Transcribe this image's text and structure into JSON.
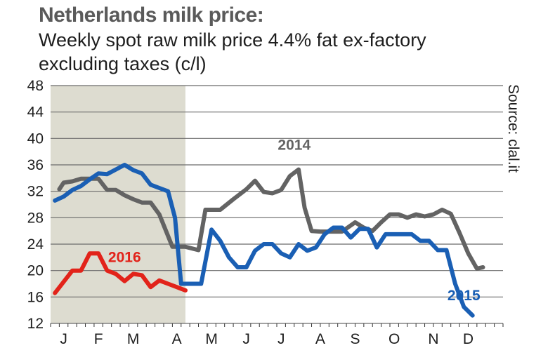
{
  "chart_data": {
    "type": "line",
    "title": "Netherlands milk price:",
    "subtitle": "Weekly spot raw milk price 4.4% fat ex-factory excluding taxes (c/l)",
    "source": "Source: clal.it",
    "xlabel": "",
    "ylabel": "",
    "ylim": [
      12,
      48
    ],
    "yticks": [
      12,
      16,
      20,
      24,
      28,
      32,
      36,
      40,
      44,
      48
    ],
    "x_domain": [
      0,
      52
    ],
    "month_ticks": [
      {
        "label": "J",
        "week": 1.5
      },
      {
        "label": "F",
        "week": 5.5
      },
      {
        "label": "M",
        "week": 9.5
      },
      {
        "label": "A",
        "week": 14.5
      },
      {
        "label": "M",
        "week": 18.5
      },
      {
        "label": "J",
        "week": 22.5
      },
      {
        "label": "J",
        "week": 26.5
      },
      {
        "label": "A",
        "week": 31
      },
      {
        "label": "S",
        "week": 35
      },
      {
        "label": "O",
        "week": 39.5
      },
      {
        "label": "N",
        "week": 44
      },
      {
        "label": "D",
        "week": 48
      }
    ],
    "grid": true,
    "shaded_region": {
      "from_week": 0,
      "to_week": 15.5,
      "color": "#dddcd0"
    },
    "series": [
      {
        "name": "2014",
        "color": "#636363",
        "label_at": {
          "week": 28,
          "value": 38.3
        },
        "points": [
          [
            1,
            32.3
          ],
          [
            1.5,
            33.3
          ],
          [
            2.5,
            33.5
          ],
          [
            3.5,
            33.9
          ],
          [
            5.5,
            33.9
          ],
          [
            6.5,
            32.2
          ],
          [
            7.5,
            32.2
          ],
          [
            8.5,
            31.4
          ],
          [
            9.5,
            30.8
          ],
          [
            10.5,
            30.3
          ],
          [
            11.5,
            30.3
          ],
          [
            12.5,
            28.5
          ],
          [
            14,
            23.6
          ],
          [
            15.5,
            23.6
          ],
          [
            17,
            23.1
          ],
          [
            17.8,
            29.2
          ],
          [
            19.5,
            29.2
          ],
          [
            21,
            30.8
          ],
          [
            22.5,
            32.3
          ],
          [
            23.5,
            33.6
          ],
          [
            24.5,
            31.9
          ],
          [
            25.5,
            31.7
          ],
          [
            26.5,
            32.2
          ],
          [
            27.5,
            34.3
          ],
          [
            28.5,
            35.3
          ],
          [
            29.2,
            29.5
          ],
          [
            30,
            26
          ],
          [
            31,
            25.9
          ],
          [
            33.5,
            25.9
          ],
          [
            35,
            27.3
          ],
          [
            36,
            26.5
          ],
          [
            37,
            26
          ],
          [
            38,
            27.3
          ],
          [
            39,
            28.5
          ],
          [
            40,
            28.5
          ],
          [
            41,
            28
          ],
          [
            42,
            28.5
          ],
          [
            43,
            28.2
          ],
          [
            44,
            28.5
          ],
          [
            45,
            29.2
          ],
          [
            46,
            28.6
          ],
          [
            47,
            25.7
          ],
          [
            48,
            22.6
          ],
          [
            49,
            20.3
          ],
          [
            49.7,
            20.5
          ]
        ]
      },
      {
        "name": "2015",
        "color": "#1a5fb4",
        "label_at": {
          "week": 47.5,
          "value": 15.5
        },
        "points": [
          [
            0.5,
            30.6
          ],
          [
            1.5,
            31.2
          ],
          [
            2.5,
            32.2
          ],
          [
            3.5,
            32.8
          ],
          [
            4.5,
            33.8
          ],
          [
            5.5,
            34.7
          ],
          [
            6.5,
            34.6
          ],
          [
            7.5,
            35.3
          ],
          [
            8.5,
            36
          ],
          [
            9.5,
            35.2
          ],
          [
            10.5,
            34.7
          ],
          [
            11.5,
            33
          ],
          [
            12.5,
            32.5
          ],
          [
            13.5,
            32
          ],
          [
            14.3,
            28
          ],
          [
            15,
            18
          ],
          [
            16.5,
            18
          ],
          [
            17.3,
            18
          ],
          [
            18.5,
            26.2
          ],
          [
            19.5,
            24.5
          ],
          [
            20.5,
            22
          ],
          [
            21.5,
            20.5
          ],
          [
            22.5,
            20.5
          ],
          [
            23.5,
            23
          ],
          [
            24.5,
            24
          ],
          [
            25.5,
            24
          ],
          [
            26.5,
            22.6
          ],
          [
            27.5,
            22
          ],
          [
            28.5,
            24
          ],
          [
            29.5,
            23
          ],
          [
            30.5,
            23.5
          ],
          [
            31.5,
            25.5
          ],
          [
            32.5,
            26.5
          ],
          [
            33.5,
            26.5
          ],
          [
            34.5,
            25
          ],
          [
            35.5,
            26.3
          ],
          [
            36.5,
            26.3
          ],
          [
            37.5,
            23.5
          ],
          [
            38.5,
            25.5
          ],
          [
            39.5,
            25.5
          ],
          [
            40.5,
            25.5
          ],
          [
            41.5,
            25.5
          ],
          [
            42.5,
            24.5
          ],
          [
            43.5,
            24.5
          ],
          [
            44.5,
            23.1
          ],
          [
            45.5,
            23.1
          ],
          [
            46.5,
            18
          ],
          [
            47.5,
            14.5
          ],
          [
            48.5,
            13.2
          ]
        ]
      },
      {
        "name": "2016",
        "color": "#e2231a",
        "label_at": {
          "week": 8.5,
          "value": 21.3
        },
        "points": [
          [
            0.5,
            16.6
          ],
          [
            1.5,
            18.3
          ],
          [
            2.5,
            20
          ],
          [
            3.5,
            20
          ],
          [
            4.5,
            22.6
          ],
          [
            5.5,
            22.6
          ],
          [
            6.5,
            20
          ],
          [
            7.5,
            19.5
          ],
          [
            8.5,
            18.4
          ],
          [
            9.5,
            19.5
          ],
          [
            10.5,
            19.3
          ],
          [
            11.5,
            17.5
          ],
          [
            12.5,
            18.5
          ],
          [
            13.5,
            18
          ],
          [
            14.5,
            17.5
          ],
          [
            15.5,
            17
          ]
        ]
      }
    ]
  }
}
